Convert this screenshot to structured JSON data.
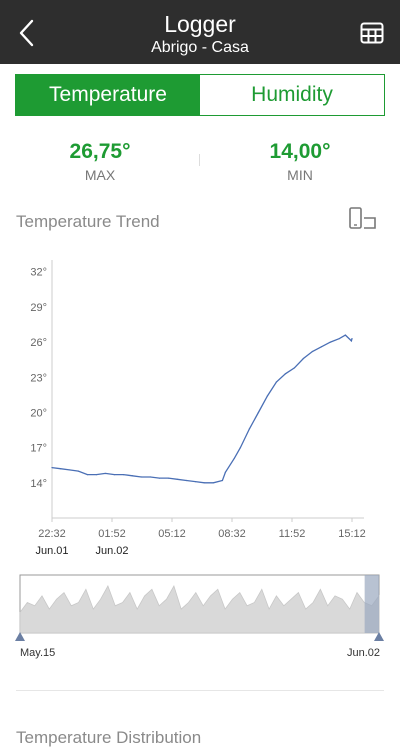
{
  "header": {
    "title": "Logger",
    "subtitle": "Abrigo - Casa",
    "back_icon": "chevron-left-icon",
    "table_icon": "table-grid-icon"
  },
  "tabs": [
    {
      "label": "Temperature",
      "active": true
    },
    {
      "label": "Humidity",
      "active": false
    }
  ],
  "stats": {
    "max_value": "26,75°",
    "max_label": "MAX",
    "min_value": "14,00°",
    "min_label": "MIN"
  },
  "trend": {
    "title": "Temperature Trend",
    "device_icon": "phone-landscape-icon"
  },
  "distribution": {
    "title": "Temperature Distribution"
  },
  "colors": {
    "accent": "#1e9b33",
    "header_bg": "#2e2e2e",
    "line": "#4a6fb5"
  },
  "chart_data": {
    "type": "line",
    "y_ticks": [
      "32°",
      "29°",
      "26°",
      "23°",
      "20°",
      "17°",
      "14°"
    ],
    "ylim": [
      11,
      33
    ],
    "x_ticks": [
      "22:32",
      "01:52",
      "05:12",
      "08:32",
      "11:52",
      "15:12"
    ],
    "x_date_labels": [
      {
        "text": "Jun.01",
        "at": "22:32"
      },
      {
        "text": "Jun.02",
        "at": "01:52"
      }
    ],
    "series": [
      {
        "values": [
          [
            "22:32",
            15.3
          ],
          [
            "23:00",
            15.2
          ],
          [
            "23:30",
            15.1
          ],
          [
            "00:00",
            15.0
          ],
          [
            "00:30",
            14.7
          ],
          [
            "01:00",
            14.7
          ],
          [
            "01:30",
            14.8
          ],
          [
            "02:00",
            14.7
          ],
          [
            "02:30",
            14.7
          ],
          [
            "03:00",
            14.6
          ],
          [
            "03:30",
            14.5
          ],
          [
            "04:00",
            14.5
          ],
          [
            "04:30",
            14.4
          ],
          [
            "05:00",
            14.4
          ],
          [
            "05:30",
            14.3
          ],
          [
            "06:00",
            14.2
          ],
          [
            "06:30",
            14.1
          ],
          [
            "07:00",
            14.0
          ],
          [
            "07:30",
            14.0
          ],
          [
            "08:00",
            14.2
          ],
          [
            "08:10",
            14.9
          ],
          [
            "08:40",
            16.1
          ],
          [
            "09:00",
            17.0
          ],
          [
            "09:30",
            18.6
          ],
          [
            "10:00",
            20.0
          ],
          [
            "10:30",
            21.4
          ],
          [
            "11:00",
            22.6
          ],
          [
            "11:30",
            23.3
          ],
          [
            "12:00",
            23.8
          ],
          [
            "12:30",
            24.6
          ],
          [
            "13:00",
            25.2
          ],
          [
            "13:30",
            25.6
          ],
          [
            "14:00",
            26.0
          ],
          [
            "14:30",
            26.3
          ],
          [
            "14:50",
            26.6
          ],
          [
            "15:10",
            26.1
          ],
          [
            "15:12",
            26.3
          ]
        ]
      }
    ]
  },
  "navigator": {
    "start_label": "May.15",
    "end_label": "Jun.02",
    "overview_values": [
      2,
      5,
      4,
      7,
      3,
      6,
      8,
      4,
      5,
      9,
      3,
      6,
      10,
      4,
      5,
      8,
      3,
      7,
      9,
      4,
      6,
      10,
      3,
      5,
      8,
      4,
      7,
      9,
      3,
      6,
      8,
      4,
      5,
      9,
      3,
      7,
      4,
      6,
      8,
      3,
      5,
      9,
      4,
      7,
      6,
      3,
      8,
      5,
      4,
      7
    ],
    "selected_range": [
      0.96,
      1.0
    ]
  }
}
